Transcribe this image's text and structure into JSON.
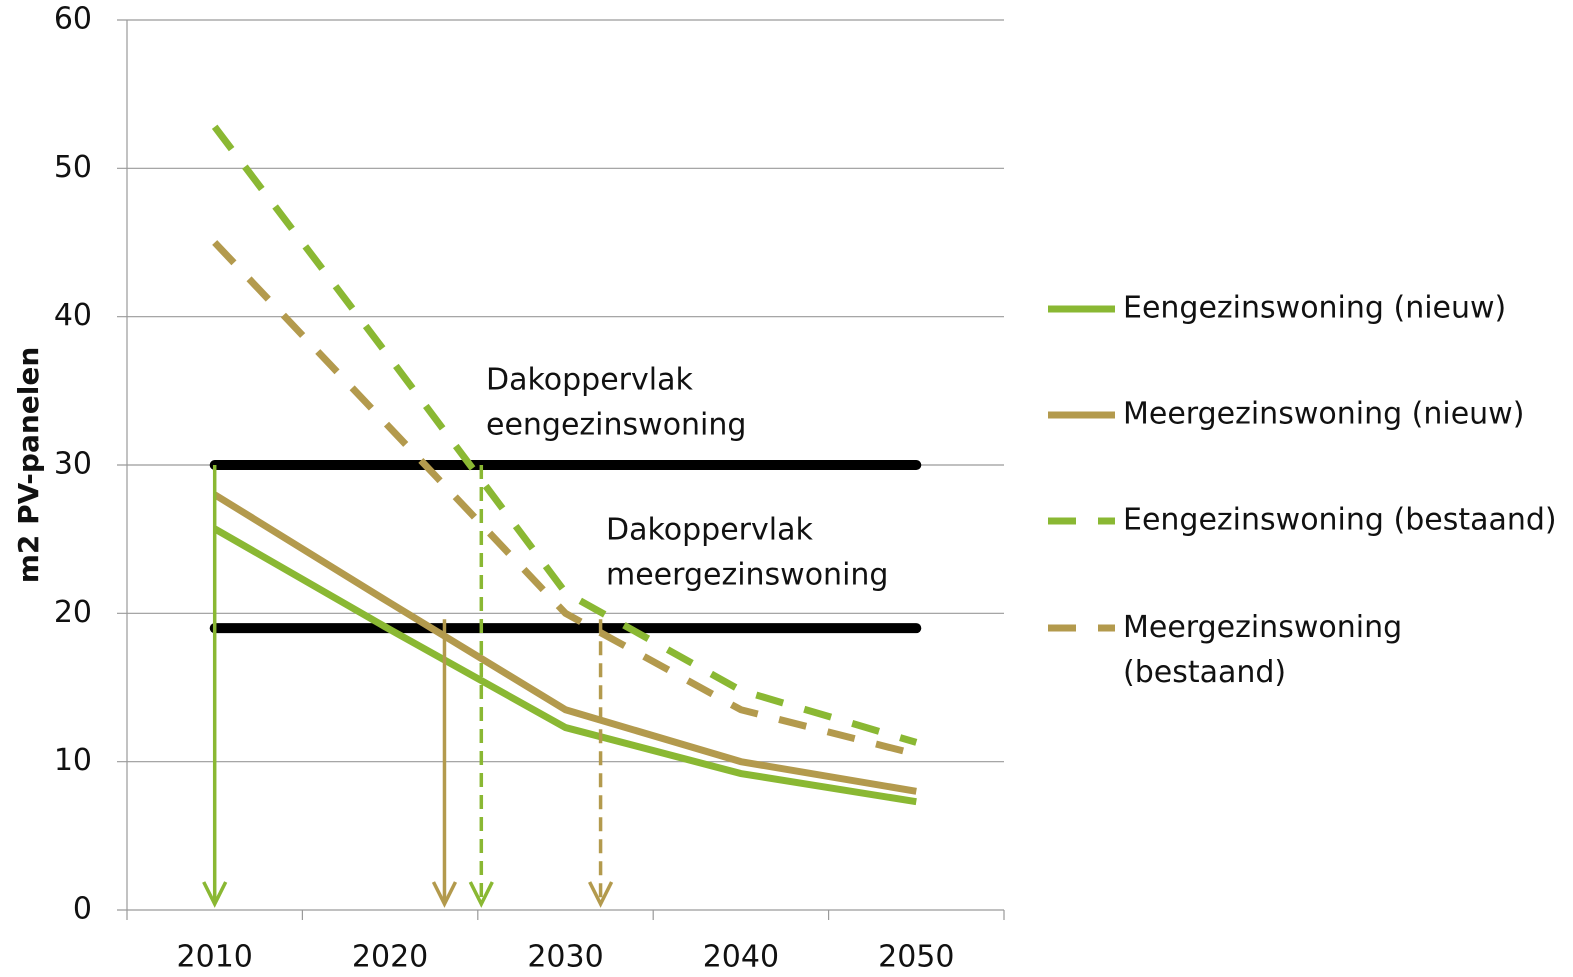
{
  "chart_data": {
    "type": "line",
    "y_label": "m2 PV-panelen",
    "x": [
      2010,
      2020,
      2030,
      2040,
      2050
    ],
    "xlim": [
      2005,
      2055
    ],
    "xticks": [
      2010,
      2020,
      2030,
      2040,
      2050
    ],
    "ylim": [
      0,
      60
    ],
    "yticks": [
      0,
      10,
      20,
      30,
      40,
      50,
      60
    ],
    "grid": true,
    "legend": "right",
    "series": [
      {
        "name": "Eengezinswoning (nieuw)",
        "color": "#8ab833",
        "dashed": false,
        "values": [
          25.7,
          18.9,
          12.3,
          9.2,
          7.3
        ]
      },
      {
        "name": "Meergezinswoning (nieuw)",
        "color": "#b39a4d",
        "dashed": false,
        "values": [
          28.0,
          20.7,
          13.5,
          10.0,
          8.0
        ]
      },
      {
        "name": "Eengezinswoning (bestaand)",
        "color": "#8ab833",
        "dashed": true,
        "values": [
          52.8,
          37.2,
          21.4,
          14.8,
          11.3
        ]
      },
      {
        "name": "Meergezinswoning (bestaand)",
        "color": "#b39a4d",
        "dashed": true,
        "values": [
          45.0,
          32.5,
          20.0,
          13.5,
          10.5
        ]
      }
    ],
    "reference_lines": [
      {
        "y": 30,
        "label_lines": [
          "Dakoppervlak",
          "eengezinswoning"
        ]
      },
      {
        "y": 19,
        "label_lines": [
          "Dakoppervlak",
          "meergezinswoning"
        ]
      }
    ],
    "arrows": [
      {
        "series": 0,
        "x": 2010,
        "y": 30
      },
      {
        "series": 1,
        "x": 2023.1,
        "y": 19.6
      },
      {
        "series": 2,
        "x": 2025.2,
        "y": 30
      },
      {
        "series": 3,
        "x": 2032.0,
        "y": 19.6
      }
    ]
  }
}
